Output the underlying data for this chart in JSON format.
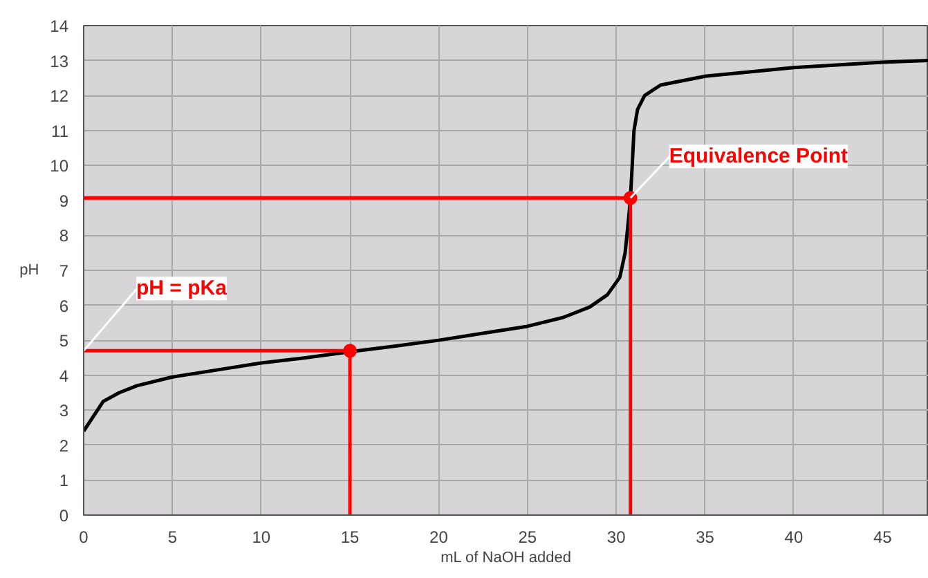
{
  "chart_data": {
    "type": "line",
    "xlabel": "mL of NaOH added",
    "ylabel": "pH",
    "xlim": [
      0,
      47.6
    ],
    "ylim": [
      0,
      14
    ],
    "xticks": [
      0,
      5,
      10,
      15,
      20,
      25,
      30,
      35,
      40,
      45
    ],
    "yticks": [
      0,
      1,
      2,
      3,
      4,
      5,
      6,
      7,
      8,
      9,
      10,
      11,
      12,
      13,
      14
    ],
    "grid": true,
    "series": [
      {
        "color": "#000000",
        "x": [
          0,
          1.1,
          2,
          3,
          5,
          7.5,
          10,
          12.5,
          15,
          17.5,
          20,
          22.5,
          25,
          27,
          28.5,
          29.5,
          30.2,
          30.5,
          30.7,
          30.8,
          30.9,
          31,
          31.2,
          31.6,
          32.5,
          35,
          40,
          45,
          47.6
        ],
        "values": [
          2.4,
          3.25,
          3.5,
          3.7,
          3.95,
          4.15,
          4.35,
          4.5,
          4.67,
          4.83,
          5.0,
          5.2,
          5.4,
          5.65,
          5.95,
          6.3,
          6.8,
          7.5,
          8.5,
          9.07,
          10,
          11,
          11.6,
          12.0,
          12.3,
          12.55,
          12.8,
          12.95,
          13.0
        ]
      },
      {
        "type": "line",
        "color": "#ff0000",
        "marker": "none",
        "x": [
          0,
          15,
          15
        ],
        "values": [
          4.7,
          4.7,
          0
        ]
      },
      {
        "type": "line",
        "color": "#ff0000",
        "marker": "none",
        "x": [
          0,
          30.8,
          30.8
        ],
        "values": [
          9.07,
          9.07,
          0
        ]
      },
      {
        "type": "scatter",
        "color": "#ff0000",
        "marker": "circle",
        "x": [
          15,
          30.8
        ],
        "values": [
          4.7,
          9.07
        ]
      }
    ],
    "annotations": [
      {
        "text": "pH = pKa",
        "x": 0,
        "y": 4.7
      },
      {
        "text": "Equivalence Point",
        "x": 30.8,
        "y": 9.07
      }
    ]
  }
}
